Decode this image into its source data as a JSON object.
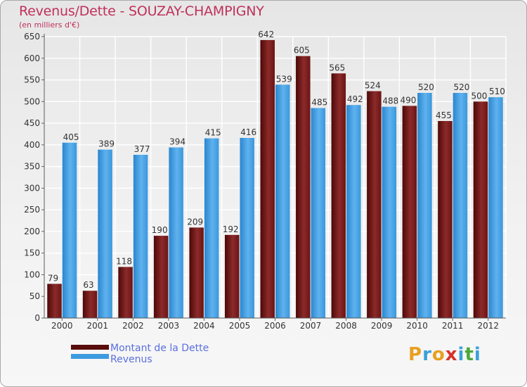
{
  "header": {
    "title": "Revenus/Dette - SOUZAY-CHAMPIGNY",
    "subtitle": "(en milliers d'€)"
  },
  "legend": {
    "items": [
      {
        "label": "Montant de la Dette",
        "color": "#7a1a1a"
      },
      {
        "label": "Revenus",
        "color": "#3d9be0"
      }
    ]
  },
  "logo": {
    "letters": [
      "P",
      "r",
      "o",
      "x",
      "i",
      "t",
      "i"
    ],
    "colors": [
      "#e8a020",
      "#3aa0d8",
      "#e8a020",
      "#d8302a",
      "#3aa0d8",
      "#4aa838",
      "#3aa0d8"
    ]
  },
  "chart_data": {
    "type": "bar",
    "categories": [
      "2000",
      "2001",
      "2002",
      "2003",
      "2004",
      "2005",
      "2006",
      "2007",
      "2008",
      "2009",
      "2010",
      "2011",
      "2012"
    ],
    "series": [
      {
        "name": "Montant de la Dette",
        "values": [
          79,
          63,
          118,
          190,
          209,
          192,
          642,
          605,
          565,
          524,
          490,
          455,
          500
        ],
        "color": "#7a1a1a"
      },
      {
        "name": "Revenus",
        "values": [
          405,
          389,
          377,
          394,
          415,
          416,
          539,
          485,
          492,
          488,
          520,
          520,
          510
        ],
        "color": "#3d9be0"
      }
    ],
    "ylim": [
      0,
      650
    ],
    "yticks": [
      0,
      50,
      100,
      150,
      200,
      250,
      300,
      350,
      400,
      450,
      500,
      550,
      600,
      650
    ],
    "grid": true,
    "legend_position": "bottom-left"
  }
}
